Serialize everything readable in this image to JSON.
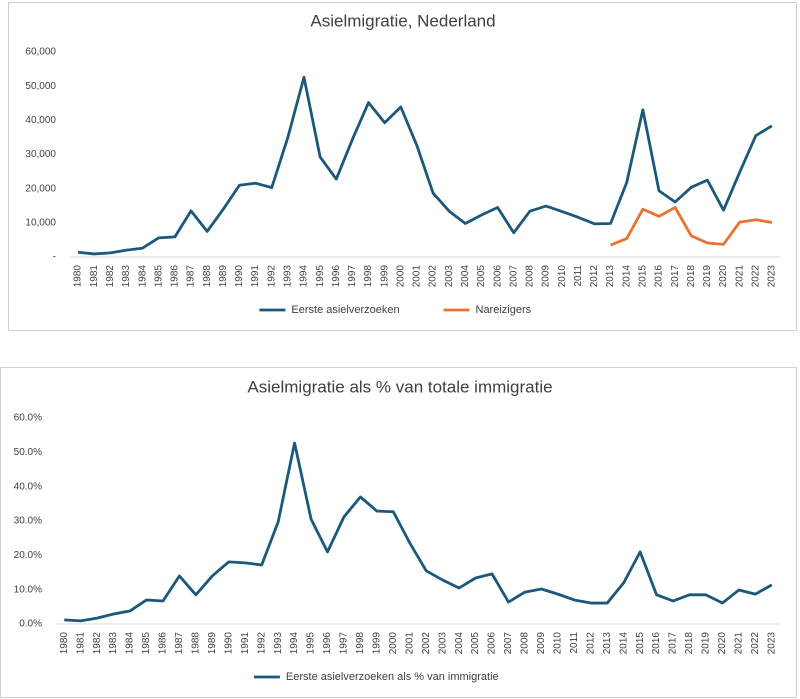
{
  "chart_data": [
    {
      "type": "line",
      "title": "Asielmigratie, Nederland",
      "categories": [
        "1980",
        "1981",
        "1982",
        "1983",
        "1984",
        "1985",
        "1986",
        "1987",
        "1988",
        "1989",
        "1990",
        "1991",
        "1992",
        "1993",
        "1994",
        "1995",
        "1996",
        "1997",
        "1998",
        "1999",
        "2000",
        "2001",
        "2002",
        "2003",
        "2004",
        "2005",
        "2006",
        "2007",
        "2008",
        "2009",
        "2010",
        "2011",
        "2012",
        "2013",
        "2014",
        "2015",
        "2016",
        "2017",
        "2018",
        "2019",
        "2020",
        "2021",
        "2022",
        "2023"
      ],
      "series": [
        {
          "name": "Eerste asielverzoeken",
          "color": "#1b587c",
          "values": [
            1400,
            900,
            1200,
            2000,
            2600,
            5600,
            5900,
            13500,
            7500,
            14000,
            21000,
            21600,
            20300,
            35000,
            52600,
            29300,
            22800,
            34400,
            45200,
            39300,
            43900,
            32600,
            18700,
            13400,
            9800,
            12300,
            14500,
            7100,
            13400,
            14900,
            13300,
            11600,
            9700,
            9800,
            21800,
            43100,
            19400,
            16100,
            20400,
            22500,
            13700,
            24800,
            35500,
            38400
          ]
        },
        {
          "name": "Nareizigers",
          "color": "#e97132",
          "values": [
            null,
            null,
            null,
            null,
            null,
            null,
            null,
            null,
            null,
            null,
            null,
            null,
            null,
            null,
            null,
            null,
            null,
            null,
            null,
            null,
            null,
            null,
            null,
            null,
            null,
            null,
            null,
            null,
            null,
            null,
            null,
            null,
            null,
            3500,
            5400,
            14000,
            11900,
            14500,
            6200,
            4100,
            3700,
            10200,
            10900,
            10100
          ]
        }
      ],
      "ylim": [
        0,
        60000
      ],
      "yticks": [
        {
          "value": 0,
          "label": "-"
        },
        {
          "value": 10000,
          "label": "10,000"
        },
        {
          "value": 20000,
          "label": "20,000"
        },
        {
          "value": 30000,
          "label": "30,000"
        },
        {
          "value": 40000,
          "label": "40,000"
        },
        {
          "value": 50000,
          "label": "50,000"
        },
        {
          "value": 60000,
          "label": "60,000"
        }
      ],
      "grid": false,
      "legend": "bottom"
    },
    {
      "type": "line",
      "title": "Asielmigratie als % van totale immigratie",
      "categories": [
        "1980",
        "1981",
        "1982",
        "1983",
        "1984",
        "1985",
        "1986",
        "1987",
        "1988",
        "1989",
        "1990",
        "1991",
        "1992",
        "1993",
        "1994",
        "1995",
        "1996",
        "1997",
        "1998",
        "1999",
        "2000",
        "2001",
        "2002",
        "2003",
        "2004",
        "2005",
        "2006",
        "2007",
        "2008",
        "2009",
        "2010",
        "2011",
        "2012",
        "2013",
        "2014",
        "2015",
        "2016",
        "2017",
        "2018",
        "2019",
        "2020",
        "2021",
        "2022",
        "2023"
      ],
      "series": [
        {
          "name": "Eerste asielverzoeken als % van immigratie",
          "color": "#1b587c",
          "values": [
            1.2,
            0.9,
            1.7,
            2.9,
            3.8,
            7.0,
            6.7,
            14.0,
            8.5,
            14.0,
            18.1,
            17.8,
            17.2,
            29.7,
            52.7,
            30.6,
            21.0,
            31.2,
            37.0,
            32.9,
            32.7,
            23.6,
            15.5,
            12.8,
            10.5,
            13.4,
            14.6,
            6.4,
            9.3,
            10.2,
            8.7,
            7.0,
            6.1,
            6.1,
            12.0,
            21.0,
            8.5,
            6.7,
            8.5,
            8.5,
            6.1,
            9.9,
            8.7,
            11.4
          ]
        }
      ],
      "ylim": [
        0,
        60
      ],
      "yticks": [
        {
          "value": 0,
          "label": "0.0%"
        },
        {
          "value": 10,
          "label": "10.0%"
        },
        {
          "value": 20,
          "label": "20.0%"
        },
        {
          "value": 30,
          "label": "30.0%"
        },
        {
          "value": 40,
          "label": "40.0%"
        },
        {
          "value": 50,
          "label": "50.0%"
        },
        {
          "value": 60,
          "label": "60.0%"
        }
      ],
      "grid": false,
      "legend": "bottom"
    }
  ]
}
